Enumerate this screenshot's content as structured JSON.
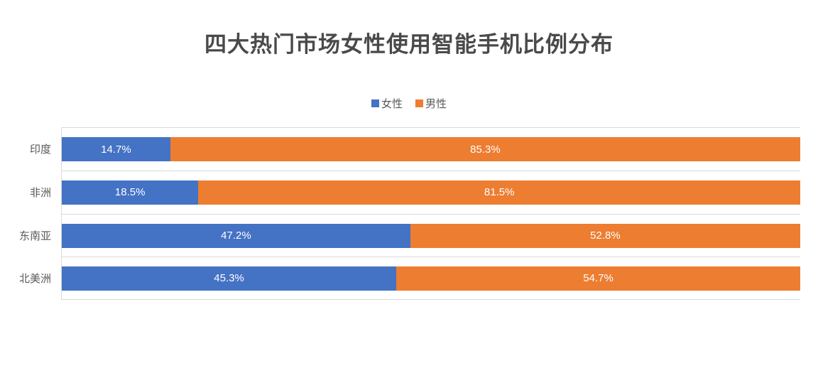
{
  "chart_data": {
    "type": "bar",
    "orientation": "horizontal",
    "stacked": true,
    "title": "四大热门市场女性使用智能手机比例分布",
    "categories": [
      "印度",
      "非洲",
      "东南亚",
      "北美洲"
    ],
    "series": [
      {
        "name": "女性",
        "color": "#4472C4",
        "values": [
          14.7,
          18.5,
          47.2,
          45.3
        ],
        "labels": [
          "14.7%",
          "18.5%",
          "47.2%",
          "45.3%"
        ]
      },
      {
        "name": "男性",
        "color": "#ED7D31",
        "values": [
          85.3,
          81.5,
          52.8,
          54.7
        ],
        "labels": [
          "85.3%",
          "81.5%",
          "52.8%",
          "54.7%"
        ]
      }
    ],
    "xlabel": "",
    "ylabel": "",
    "xlim": [
      0,
      100
    ],
    "legend_position": "top",
    "grid": "category-separator-lines",
    "data_labels": "centered-white"
  },
  "theme": {
    "background": "#ffffff",
    "title_color": "#4a4a4a",
    "axis_text_color": "#595959",
    "gridline_color": "#d9d9d9",
    "data_label_color": "#ffffff"
  }
}
